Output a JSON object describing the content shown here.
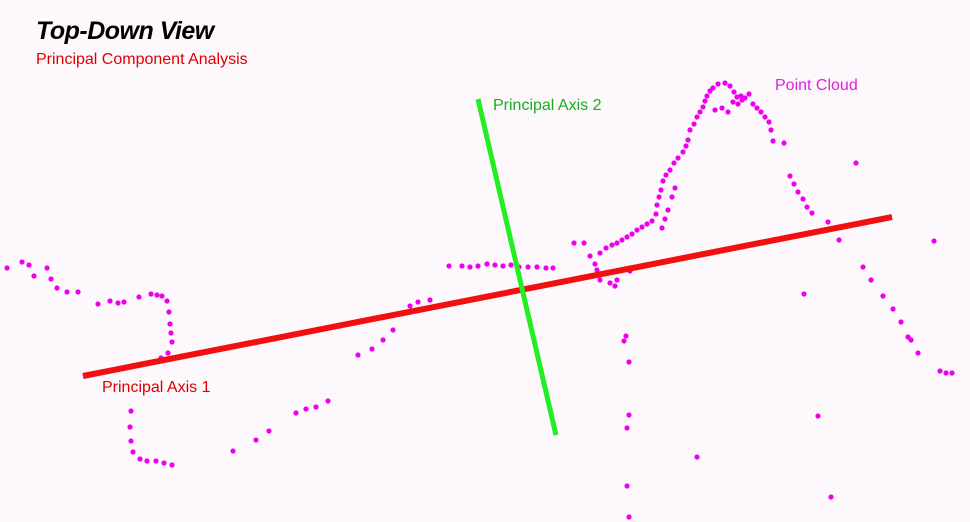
{
  "header": {
    "title": "Top-Down View",
    "subtitle": "Principal Component Analysis"
  },
  "labels": {
    "axis1": "Principal Axis 1",
    "axis2": "Principal Axis 2",
    "cloud": "Point Cloud"
  },
  "colors": {
    "axis1": "#f01010",
    "axis2": "#22ee22",
    "points": "#ee00ee",
    "title": "#000000",
    "subtitle": "#e00000",
    "background": "#fdf8fc"
  }
}
